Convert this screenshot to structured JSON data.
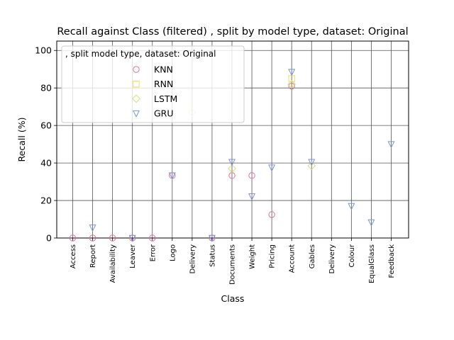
{
  "chart_data": {
    "type": "scatter",
    "title": "Recall against Class (filtered) , split by model type, dataset: Original",
    "xlabel": "Class",
    "ylabel": "Recall (%)",
    "ylim": [
      0,
      105
    ],
    "yticks": [
      0,
      20,
      40,
      60,
      80,
      100
    ],
    "grid": true,
    "legend_title": ", split model type, dataset: Original",
    "legend_position": "upper-left",
    "categories": [
      "Access",
      "Report",
      "Availability",
      "Leaver",
      "Error",
      "Logo",
      "Delivery",
      "Status",
      "Documents",
      "Weight",
      "Pricing",
      "Account",
      "Gables",
      "Delivery",
      "Colour",
      "EqualGlass",
      "Feedback"
    ],
    "series": [
      {
        "name": "KNN",
        "marker": "circle",
        "color": "#e0708f",
        "values": [
          0,
          0,
          0,
          0,
          0,
          33.3,
          null,
          0,
          33.3,
          33.3,
          12.5,
          81,
          null,
          null,
          null,
          null,
          null
        ]
      },
      {
        "name": "RNN",
        "marker": "square",
        "color": "#f2dc5a",
        "values": [
          null,
          null,
          null,
          null,
          null,
          null,
          null,
          null,
          null,
          null,
          null,
          85,
          null,
          null,
          null,
          null,
          null
        ]
      },
      {
        "name": "LSTM",
        "marker": "diamond",
        "color": "#d4e07a",
        "values": [
          null,
          null,
          null,
          null,
          null,
          null,
          67,
          null,
          37,
          null,
          null,
          82,
          38.5,
          null,
          null,
          null,
          null
        ]
      },
      {
        "name": "GRU",
        "marker": "triangle-down",
        "color": "#7b95db",
        "values": [
          null,
          5.5,
          null,
          0,
          null,
          33.3,
          null,
          0,
          40.5,
          22.2,
          37.5,
          88.5,
          40.5,
          null,
          17,
          8.3,
          50
        ]
      }
    ]
  }
}
